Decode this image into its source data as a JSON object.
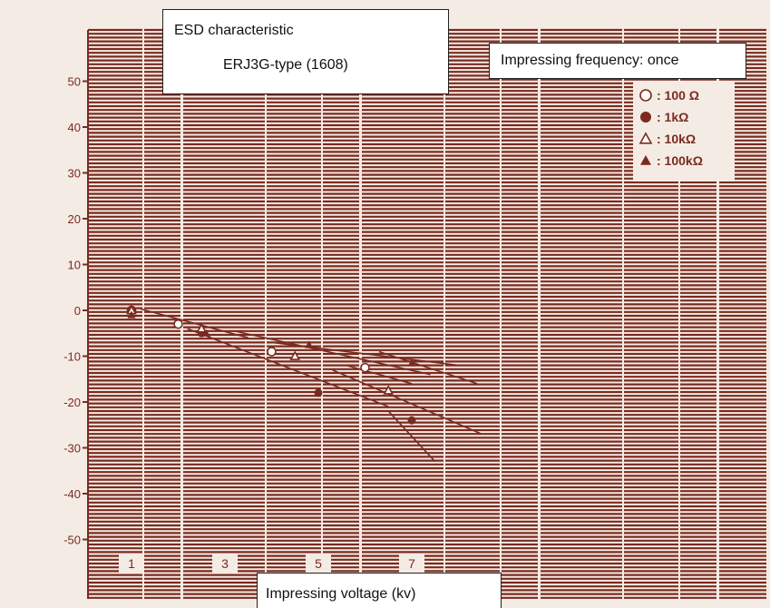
{
  "chart_data": {
    "type": "scatter",
    "title": "ESD characteristic",
    "subtitle": "ERJ3G-type (1608)",
    "annotation": "Impressing frequency: once",
    "xlabel": "Impressing voltage (kv)",
    "ylabel": "",
    "x_ticks": [
      "1",
      "3",
      "5",
      "7"
    ],
    "y_ticks": [
      "50",
      "40",
      "30",
      "20",
      "10",
      "0",
      "-10",
      "-20",
      "-30",
      "-40",
      "-50"
    ],
    "xlim": [
      0.5,
      8.5
    ],
    "ylim": [
      -53,
      60
    ],
    "grid": true,
    "legend_position": "top-right",
    "series": [
      {
        "name": ": 100 Ω",
        "marker": "open-circle",
        "x": [
          1.0,
          2.0,
          4.0,
          6.0
        ],
        "y": [
          0.0,
          -3.0,
          -9.0,
          -12.5
        ]
      },
      {
        "name": ": 1kΩ",
        "marker": "filled-circle",
        "x": [
          1.0,
          2.5,
          5.0,
          7.0
        ],
        "y": [
          0.0,
          -5.0,
          -18.0,
          -24.0
        ]
      },
      {
        "name": ": 10kΩ",
        "marker": "open-triangle",
        "x": [
          1.0,
          2.5,
          4.5,
          6.5
        ],
        "y": [
          0.0,
          -4.0,
          -10.0,
          -17.5
        ]
      },
      {
        "name": ": 100kΩ",
        "marker": "filled-triangle",
        "x": [
          1.0,
          2.6,
          4.8,
          7.0
        ],
        "y": [
          -1.0,
          -5.0,
          -7.5,
          -11.5
        ]
      }
    ]
  },
  "colors": {
    "paper": "#f4ece4",
    "ink": "#7a2a20"
  }
}
